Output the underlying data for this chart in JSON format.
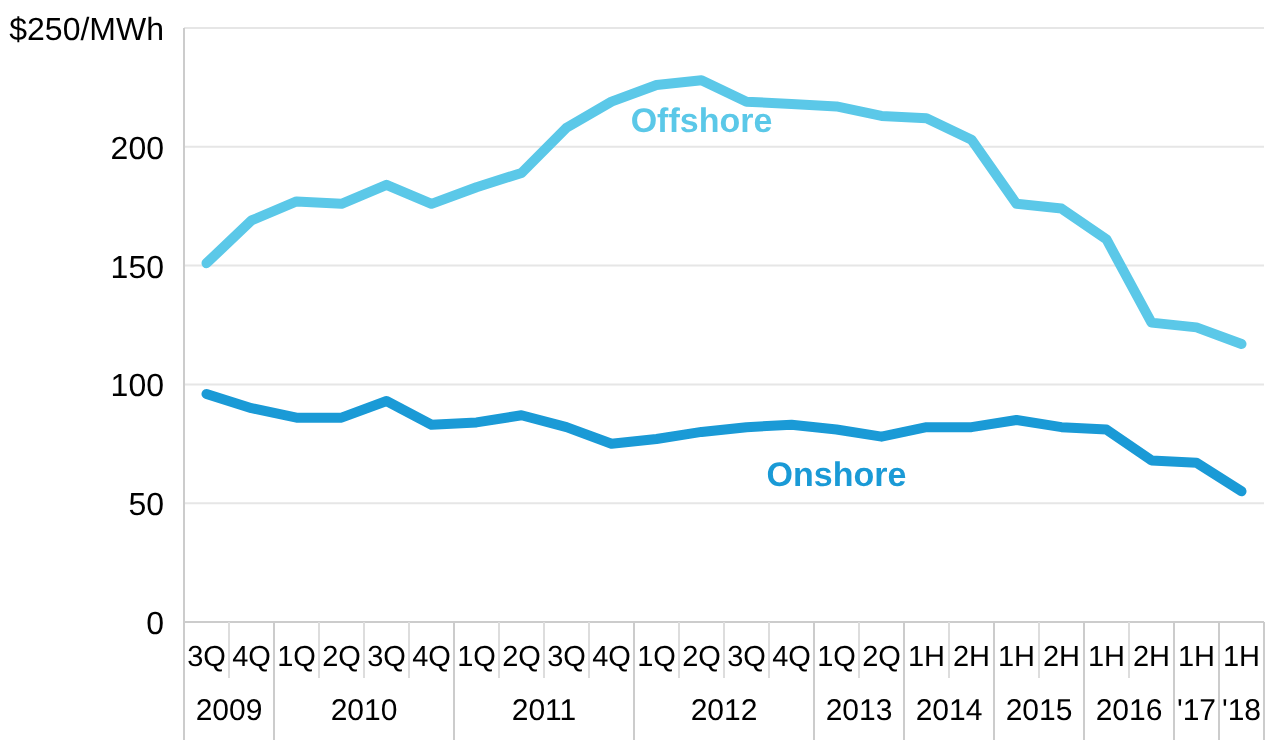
{
  "chart_data": {
    "type": "line",
    "categories": [
      "3Q",
      "4Q",
      "1Q",
      "2Q",
      "3Q",
      "4Q",
      "1Q",
      "2Q",
      "3Q",
      "4Q",
      "1Q",
      "2Q",
      "3Q",
      "4Q",
      "1Q",
      "2Q",
      "1H",
      "2H",
      "1H",
      "2H",
      "1H",
      "2H",
      "1H",
      "1H"
    ],
    "series": [
      {
        "name": "Offshore",
        "color": "#5bc8e8",
        "values": [
          151,
          169,
          177,
          176,
          184,
          176,
          183,
          189,
          208,
          219,
          226,
          228,
          219,
          218,
          217,
          213,
          212,
          203,
          176,
          174,
          161,
          126,
          124,
          117
        ]
      },
      {
        "name": "Onshore",
        "color": "#1a9ad6",
        "values": [
          96,
          90,
          86,
          86,
          93,
          83,
          84,
          87,
          82,
          75,
          77,
          80,
          82,
          83,
          81,
          78,
          82,
          82,
          85,
          82,
          81,
          68,
          67,
          55
        ]
      }
    ],
    "ylim": [
      0,
      250
    ],
    "yticks": [
      0,
      50,
      100,
      150,
      200,
      {
        "value": 250,
        "label": "$250/MWh"
      }
    ],
    "grid": "y",
    "annotations": [
      "2009",
      "2010",
      "2011",
      "2012",
      "2013",
      "2014",
      "2015",
      "2016",
      "'17",
      "'18"
    ]
  }
}
